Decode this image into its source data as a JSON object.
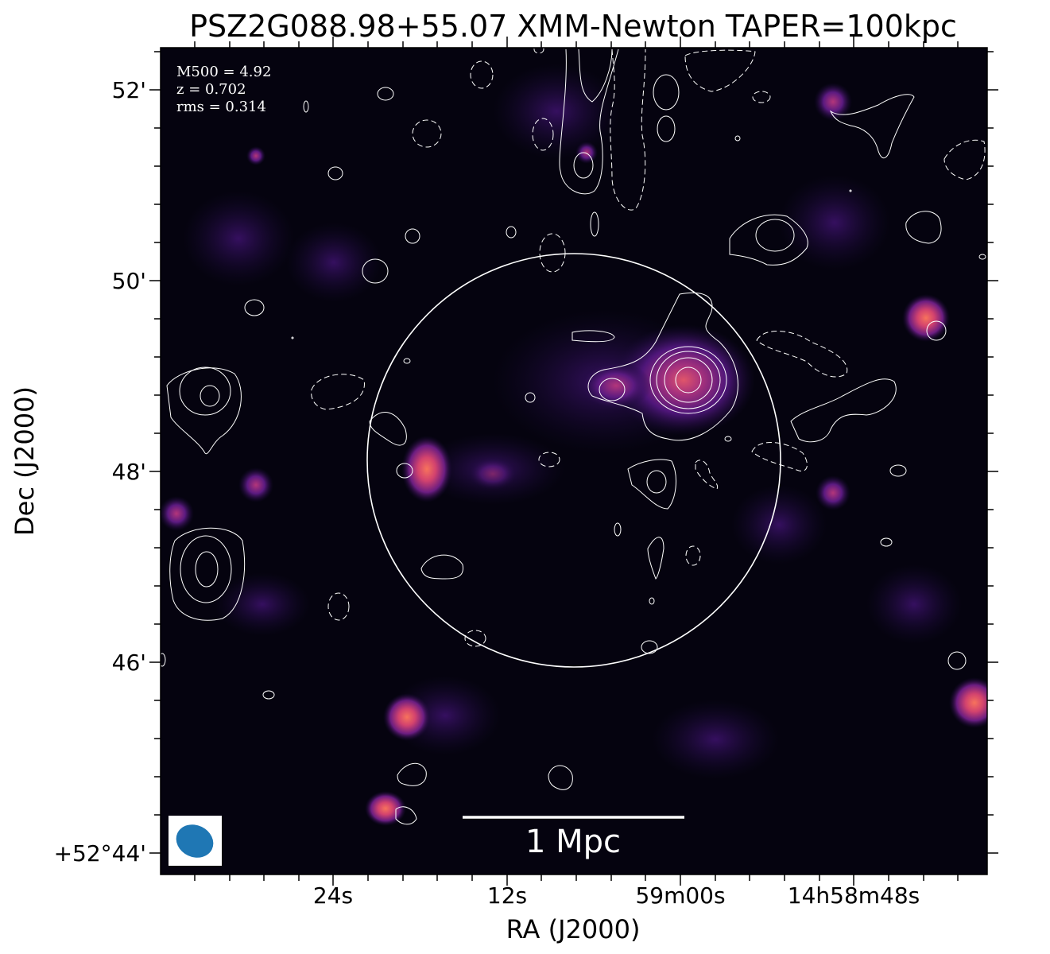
{
  "figure": {
    "title": "PSZ2G088.98+55.07 XMM-Newton TAPER=100kpc",
    "annotation": {
      "m500": "M500 = 4.92",
      "z": "z = 0.702",
      "rms": "rms = 0.314"
    },
    "scalebar_label": "1 Mpc",
    "xlabel": "RA (J2000)",
    "ylabel": "Dec (J2000)",
    "xticks": [
      "24s",
      "12s",
      "59m00s",
      "14h58m48s"
    ],
    "yticks": [
      "52'",
      "50'",
      "48'",
      "46'",
      "+52°44'"
    ],
    "colormap": "magma",
    "contour_color": "#ffffff",
    "beam_color": "#1f77b4",
    "background_color": "#05030f"
  }
}
